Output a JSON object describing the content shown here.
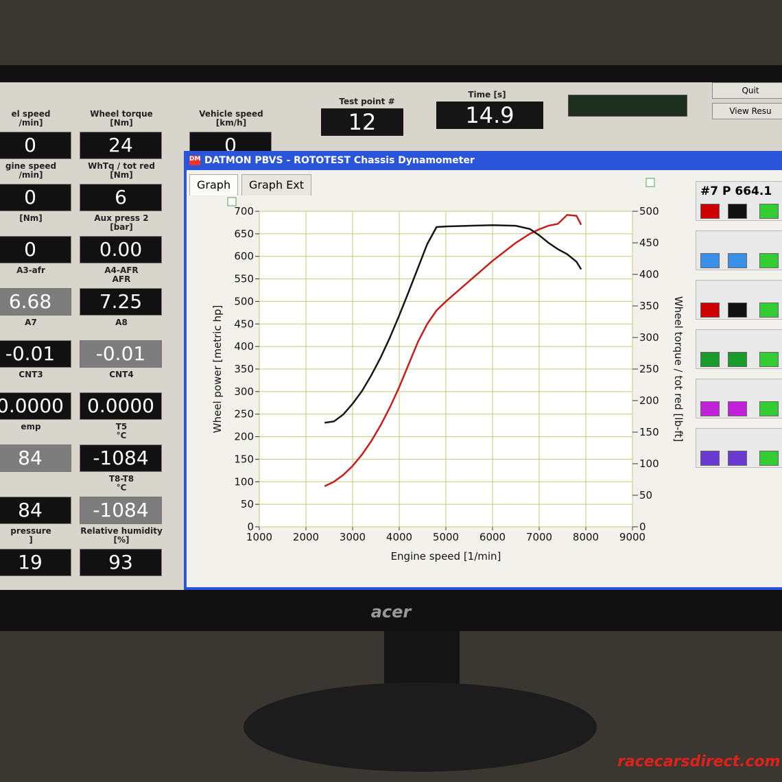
{
  "top": {
    "test_point_label": "Test point #",
    "test_point": "12",
    "time_label": "Time [s]",
    "time": "14.9",
    "buttons": [
      "Quit",
      "View Resu"
    ]
  },
  "gauges": [
    {
      "label": "el speed\n/min]",
      "value": "0"
    },
    {
      "label": "Wheel torque\n[Nm]",
      "value": "24"
    },
    {
      "label": "Vehicle speed\n[km/h]",
      "value": "0"
    },
    {
      "label": "gine speed\n/min]",
      "value": "0"
    },
    {
      "label": "WhTq / tot red\n[Nm]",
      "value": "6"
    },
    {
      "label": "[Nm]",
      "value": "0"
    },
    {
      "label": "Aux press 2\n[bar]",
      "value": "0.00"
    },
    {
      "label": "A3-afr",
      "value": "6.68"
    },
    {
      "label": "A4-AFR\nAFR",
      "value": "7.25"
    },
    {
      "label": "A7",
      "value": "-0.01"
    },
    {
      "label": "A8",
      "value": "-0.01"
    },
    {
      "label": "CNT3",
      "value": "0.0000"
    },
    {
      "label": "CNT4",
      "value": "0.0000"
    },
    {
      "label": "emp",
      "value": "84"
    },
    {
      "label": "T5\n°C",
      "value": "-1084"
    },
    {
      "label": "",
      "value": "84"
    },
    {
      "label": "T8-T8\n°C",
      "value": "-1084"
    },
    {
      "label": "pressure\n]",
      "value": "19"
    },
    {
      "label": "Relative humidity\n[%]",
      "value": "93"
    }
  ],
  "window": {
    "title": "DATMON PBVS - ROTOTEST Chassis Dynamometer",
    "tabs": [
      "Graph",
      "Graph Ext"
    ],
    "legend_text": "#7 P 664.1"
  },
  "monitor_brand": "acer",
  "watermark": "racecarsdirect.com",
  "chart_data": {
    "type": "line",
    "x_label": "Engine speed [1/min]",
    "y_label": "Wheel power [metric hp]",
    "y2_label": "Wheel torque / tot red [lb-ft]",
    "x": [
      2400,
      2600,
      2800,
      3000,
      3200,
      3400,
      3600,
      3800,
      4000,
      4200,
      4400,
      4600,
      4800,
      5000,
      5500,
      6000,
      6500,
      6800,
      7000,
      7200,
      7400,
      7600,
      7800,
      7900
    ],
    "series": [
      {
        "color": "#cc1a1a",
        "values": [
          90,
          100,
          115,
          135,
          160,
          190,
          225,
          265,
          310,
          360,
          410,
          450,
          480,
          500,
          545,
          590,
          630,
          650,
          660,
          668,
          672,
          692,
          690,
          670
        ]
      },
      {
        "color": "#151515",
        "axis": "y2",
        "values": [
          165,
          167,
          178,
          195,
          215,
          240,
          268,
          300,
          335,
          372,
          410,
          448,
          475,
          476,
          477,
          478,
          477,
          472,
          462,
          450,
          440,
          432,
          420,
          408
        ]
      }
    ],
    "xlim": [
      1000,
      9000
    ],
    "xticks": [
      1000,
      2000,
      3000,
      4000,
      5000,
      6000,
      7000,
      8000,
      9000
    ],
    "ylim": [
      0,
      700
    ],
    "yticks": [
      0,
      50,
      100,
      150,
      200,
      250,
      300,
      350,
      400,
      450,
      500,
      550,
      600,
      650,
      700
    ],
    "y2lim": [
      0,
      500
    ],
    "y2ticks": [
      0,
      50,
      100,
      150,
      200,
      250,
      300,
      350,
      400,
      450,
      500
    ],
    "grid": true,
    "grid_color": "#c8c87a"
  }
}
